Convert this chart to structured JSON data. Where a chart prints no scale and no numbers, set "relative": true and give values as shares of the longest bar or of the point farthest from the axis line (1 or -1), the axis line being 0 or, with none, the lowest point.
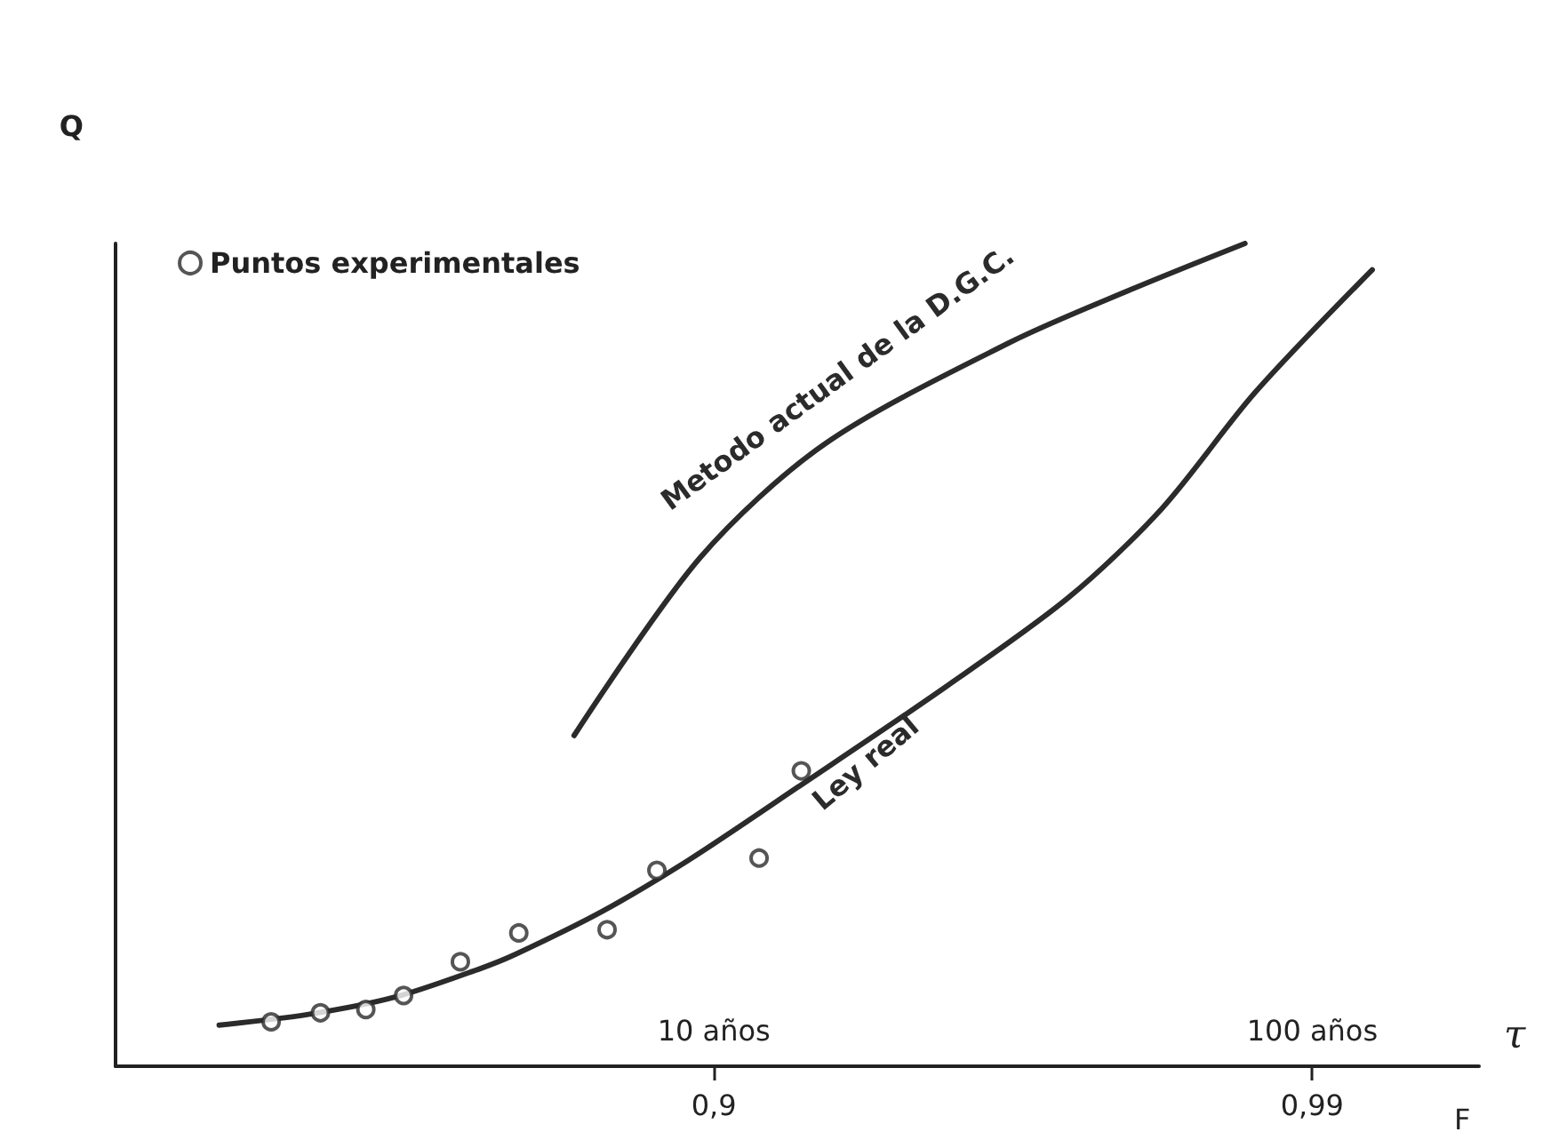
{
  "chart_data": {
    "type": "line",
    "relative": true,
    "ylabel": "Q",
    "xlabel": "τ",
    "log": "x",
    "xlim": [
      1,
      190
    ],
    "xticks": [
      {
        "value": 10,
        "label": "10 años"
      },
      {
        "value": 100,
        "label": "100 años"
      }
    ],
    "annotations": [
      "0,9",
      "0,99",
      "F"
    ],
    "grid": false,
    "marker": "none",
    "legend": "top left",
    "series": [
      {
        "type": "scatter",
        "name": "Puntos experimentales",
        "marker": "circle",
        "color": "#2b2b2b",
        "x": [
          1.82,
          2.2,
          2.62,
          3.03,
          3.77,
          4.72,
          6.63,
          8.03,
          11.9,
          14.0
        ],
        "values": [
          0.054,
          0.065,
          0.069,
          0.086,
          0.127,
          0.162,
          0.166,
          0.238,
          0.253,
          0.359
        ]
      },
      {
        "name": "Metodo actual de la D.G.C.",
        "color": "#2b2b2b",
        "x": [
          5.84,
          9.48,
          15.3,
          31.1,
          49.8,
          77.2
        ],
        "values": [
          0.402,
          0.618,
          0.756,
          0.879,
          0.944,
          1
        ]
      },
      {
        "name": "Ley real",
        "color": "#2b2b2b",
        "x": [
          1.49,
          2.1,
          2.93,
          4.08,
          4.66,
          6.5,
          9.05,
          13.8,
          24.5,
          39.2,
          56.1,
          80.3,
          126
        ],
        "values": [
          0.05,
          0.063,
          0.084,
          0.119,
          0.136,
          0.188,
          0.25,
          0.339,
          0.462,
          0.57,
          0.678,
          0.819,
          0.968
        ]
      }
    ]
  }
}
